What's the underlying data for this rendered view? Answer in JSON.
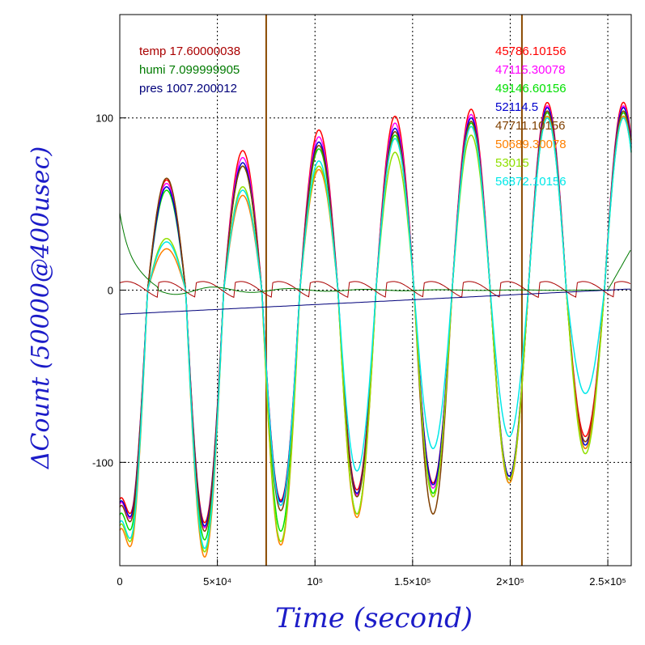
{
  "chart_data": {
    "type": "line",
    "xlabel": "Time (second)",
    "ylabel": "ΔCount (50000@400usec)",
    "xlim": [
      0,
      262000
    ],
    "ylim": [
      -160,
      160
    ],
    "x_ticks": [
      {
        "value": 0,
        "label": "0"
      },
      {
        "value": 50000,
        "label": "5×10⁴"
      },
      {
        "value": 100000,
        "label": "10⁵"
      },
      {
        "value": 150000,
        "label": "1.5×10⁵"
      },
      {
        "value": 200000,
        "label": "2×10⁵"
      },
      {
        "value": 250000,
        "label": "2.5×10⁵"
      }
    ],
    "y_ticks": [
      {
        "value": -100,
        "label": "-100"
      },
      {
        "value": 0,
        "label": "0"
      },
      {
        "value": 100,
        "label": "100"
      }
    ],
    "grid": "dotted",
    "vertical_markers": [
      75000,
      206000
    ],
    "env_legend": [
      {
        "name": "temp",
        "value": "17.60000038",
        "color": "#aa0000"
      },
      {
        "name": "humi",
        "value": "7.099999905",
        "color": "#007a00"
      },
      {
        "name": "pres",
        "value": "1007.200012",
        "color": "#00007a"
      }
    ],
    "series": [
      {
        "name": "45786.10156",
        "color": "#ff0000",
        "cycle_peaks": [
          64,
          81,
          93,
          101,
          105,
          109
        ],
        "cycle_troughs": [
          -135,
          -122,
          -116,
          -112,
          -108,
          -85
        ]
      },
      {
        "name": "47115.30078",
        "color": "#ff00ff",
        "cycle_peaks": [
          62,
          77,
          89,
          97,
          102,
          107
        ],
        "cycle_troughs": [
          -138,
          -125,
          -119,
          -115,
          -110,
          -88
        ]
      },
      {
        "name": "49146.60156",
        "color": "#00e000",
        "cycle_peaks": [
          58,
          72,
          82,
          90,
          97,
          103
        ],
        "cycle_troughs": [
          -145,
          -140,
          -130,
          -118,
          -112,
          -92
        ]
      },
      {
        "name": "52114.5",
        "color": "#0000cc",
        "cycle_peaks": [
          60,
          74,
          86,
          94,
          100,
          106
        ],
        "cycle_troughs": [
          -137,
          -123,
          -118,
          -113,
          -108,
          -90
        ]
      },
      {
        "name": "47711.10156",
        "color": "#804000",
        "cycle_peaks": [
          65,
          72,
          84,
          92,
          98,
          104
        ],
        "cycle_troughs": [
          -140,
          -128,
          -120,
          -130,
          -110,
          -88
        ]
      },
      {
        "name": "50689.30078",
        "color": "#ff8000",
        "cycle_peaks": [
          24,
          55,
          70,
          88,
          95,
          101
        ],
        "cycle_troughs": [
          -155,
          -148,
          -132,
          -120,
          -112,
          -92
        ]
      },
      {
        "name": "53015",
        "color": "#90e000",
        "cycle_peaks": [
          30,
          60,
          72,
          80,
          90,
          100
        ],
        "cycle_troughs": [
          -152,
          -146,
          -130,
          -120,
          -110,
          -95
        ]
      },
      {
        "name": "56872.10156",
        "color": "#00e8e8",
        "cycle_peaks": [
          28,
          58,
          75,
          88,
          95,
          100
        ],
        "cycle_troughs": [
          -150,
          -125,
          -105,
          -92,
          -85,
          -60
        ]
      }
    ]
  }
}
